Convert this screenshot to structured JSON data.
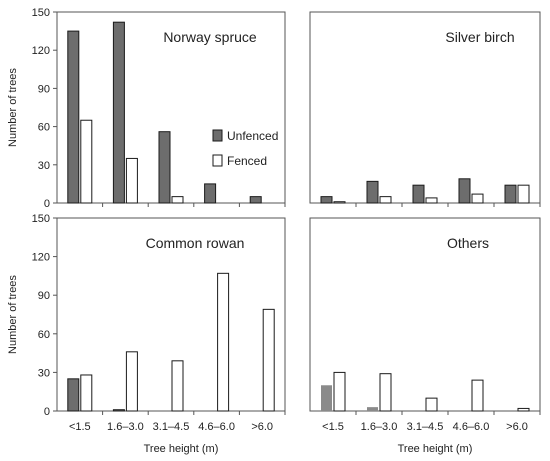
{
  "chart_data": [
    {
      "type": "bar",
      "title": "Norway spruce",
      "categories": [
        "<1.5",
        "1.6–3.0",
        "3.1–4.5",
        "4.6–6.0",
        ">6.0"
      ],
      "ylim": [
        0,
        150
      ],
      "yticks": [
        0,
        30,
        60,
        90,
        120,
        150
      ],
      "ylabel": "Number of trees",
      "xlabel": "",
      "series": [
        {
          "name": "Unfenced",
          "values": [
            135,
            142,
            56,
            15,
            5
          ]
        },
        {
          "name": "Fenced",
          "values": [
            65,
            35,
            5,
            0,
            0
          ]
        }
      ],
      "legend": "right"
    },
    {
      "type": "bar",
      "title": "Silver birch",
      "categories": [
        "<1.5",
        "1.6–3.0",
        "3.1–4.5",
        "4.6–6.0",
        ">6.0"
      ],
      "ylim": [
        0,
        150
      ],
      "ylabel": "",
      "xlabel": "",
      "series": [
        {
          "name": "Unfenced",
          "values": [
            5,
            17,
            14,
            19,
            14
          ]
        },
        {
          "name": "Fenced",
          "values": [
            1,
            5,
            4,
            7,
            14
          ]
        }
      ]
    },
    {
      "type": "bar",
      "title": "Common rowan",
      "categories": [
        "<1.5",
        "1.6–3.0",
        "3.1–4.5",
        "4.6–6.0",
        ">6.0"
      ],
      "ylim": [
        0,
        150
      ],
      "yticks": [
        0,
        30,
        60,
        90,
        120,
        150
      ],
      "ylabel": "Number of trees",
      "xlabel": "Tree height (m)",
      "series": [
        {
          "name": "Unfenced",
          "values": [
            25,
            1,
            0,
            0,
            0
          ]
        },
        {
          "name": "Fenced",
          "values": [
            28,
            46,
            39,
            107,
            79
          ]
        }
      ]
    },
    {
      "type": "bar",
      "title": "Others",
      "categories": [
        "<1.5",
        "1.6–3.0",
        "3.1–4.5",
        "4.6–6.0",
        ">6.0"
      ],
      "ylim": [
        0,
        150
      ],
      "ylabel": "",
      "xlabel": "Tree height (m)",
      "series": [
        {
          "name": "Unfenced",
          "values": [
            20,
            3,
            0,
            0,
            0
          ]
        },
        {
          "name": "Fenced",
          "values": [
            30,
            29,
            10,
            24,
            2
          ]
        }
      ]
    }
  ],
  "colors": {
    "unfenced_spruce": "#6d6d6d",
    "unfenced_others": "#8a8a8a",
    "fenced": "#ffffff",
    "stroke": "#1a1a1a",
    "frame": "#555555"
  }
}
